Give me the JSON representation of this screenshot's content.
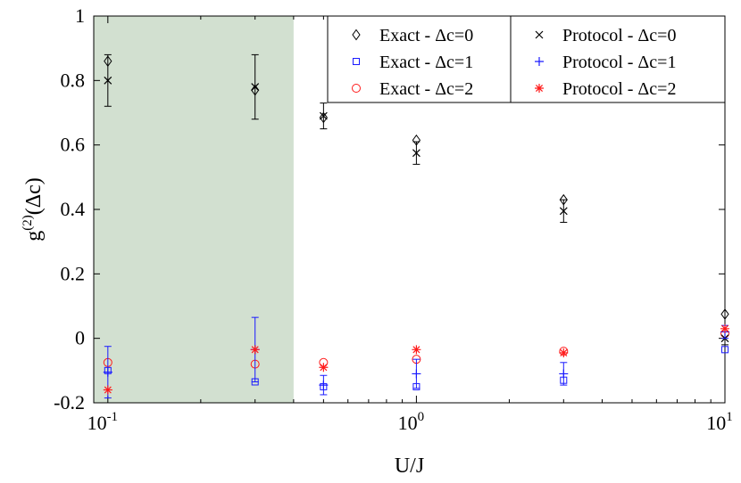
{
  "chart_data": {
    "type": "scatter",
    "x_scale": "log",
    "xlim": [
      0.09,
      10
    ],
    "ylim": [
      -0.2,
      1
    ],
    "xlabel": "U/J",
    "ylabel": {
      "base": "g",
      "sup": "(2)",
      "rest": "(Δc)"
    },
    "x_ticks": [
      {
        "value": 0.1,
        "base": "10",
        "exp": "-1"
      },
      {
        "value": 1,
        "base": "10",
        "exp": "0"
      },
      {
        "value": 10,
        "base": "10",
        "exp": "1"
      }
    ],
    "y_ticks": [
      {
        "value": -0.2,
        "label": "-0.2"
      },
      {
        "value": 0,
        "label": "0"
      },
      {
        "value": 0.2,
        "label": "0.2"
      },
      {
        "value": 0.4,
        "label": "0.4"
      },
      {
        "value": 0.6,
        "label": "0.6"
      },
      {
        "value": 0.8,
        "label": "0.8"
      },
      {
        "value": 1,
        "label": "1"
      }
    ],
    "shaded_region": {
      "x_from": 0.09,
      "x_to": 0.4,
      "color": "#d2e0d0"
    },
    "legend_position": "top-right",
    "legend_columns": 2,
    "series": [
      {
        "name": "Exact - Δc=0",
        "marker": "diamond",
        "color": "#000000",
        "points": [
          {
            "x": 0.1,
            "y": 0.86
          },
          {
            "x": 0.3,
            "y": 0.77
          },
          {
            "x": 0.5,
            "y": 0.685
          },
          {
            "x": 1,
            "y": 0.615
          },
          {
            "x": 3,
            "y": 0.43
          },
          {
            "x": 10,
            "y": 0.075
          }
        ]
      },
      {
        "name": "Exact - Δc=1",
        "marker": "square",
        "color": "#1a1aff",
        "points": [
          {
            "x": 0.1,
            "y": -0.1
          },
          {
            "x": 0.3,
            "y": -0.135
          },
          {
            "x": 0.5,
            "y": -0.15
          },
          {
            "x": 1,
            "y": -0.15
          },
          {
            "x": 3,
            "y": -0.13
          },
          {
            "x": 10,
            "y": -0.035
          }
        ]
      },
      {
        "name": "Exact - Δc=2",
        "marker": "circle",
        "color": "#ff1a1a",
        "points": [
          {
            "x": 0.1,
            "y": -0.075
          },
          {
            "x": 0.3,
            "y": -0.08
          },
          {
            "x": 0.5,
            "y": -0.075
          },
          {
            "x": 1,
            "y": -0.065
          },
          {
            "x": 3,
            "y": -0.04
          },
          {
            "x": 10,
            "y": 0.015
          }
        ]
      },
      {
        "name": "Protocol - Δc=0",
        "marker": "x",
        "color": "#000000",
        "points": [
          {
            "x": 0.1,
            "y": 0.8,
            "err": 0.08
          },
          {
            "x": 0.3,
            "y": 0.78,
            "err": 0.1
          },
          {
            "x": 0.5,
            "y": 0.69,
            "err": 0.04
          },
          {
            "x": 1,
            "y": 0.575,
            "err": 0.035
          },
          {
            "x": 3,
            "y": 0.395,
            "err": 0.035
          },
          {
            "x": 10,
            "y": 0.0,
            "err": 0.02
          }
        ]
      },
      {
        "name": "Protocol - Δc=1",
        "marker": "plus",
        "color": "#1a1aff",
        "points": [
          {
            "x": 0.1,
            "y": -0.105,
            "err": 0.08
          },
          {
            "x": 0.3,
            "y": -0.035,
            "err": 0.1
          },
          {
            "x": 0.5,
            "y": -0.145,
            "err": 0.03
          },
          {
            "x": 1,
            "y": -0.11,
            "err": 0.045
          },
          {
            "x": 3,
            "y": -0.11,
            "err": 0.035
          },
          {
            "x": 10,
            "y": 0.02,
            "err": 0.02
          }
        ]
      },
      {
        "name": "Protocol - Δc=2",
        "marker": "star",
        "color": "#ff1a1a",
        "points": [
          {
            "x": 0.1,
            "y": -0.16
          },
          {
            "x": 0.3,
            "y": -0.035
          },
          {
            "x": 0.5,
            "y": -0.09
          },
          {
            "x": 1,
            "y": -0.035
          },
          {
            "x": 3,
            "y": -0.045
          },
          {
            "x": 10,
            "y": 0.03
          }
        ]
      }
    ]
  }
}
